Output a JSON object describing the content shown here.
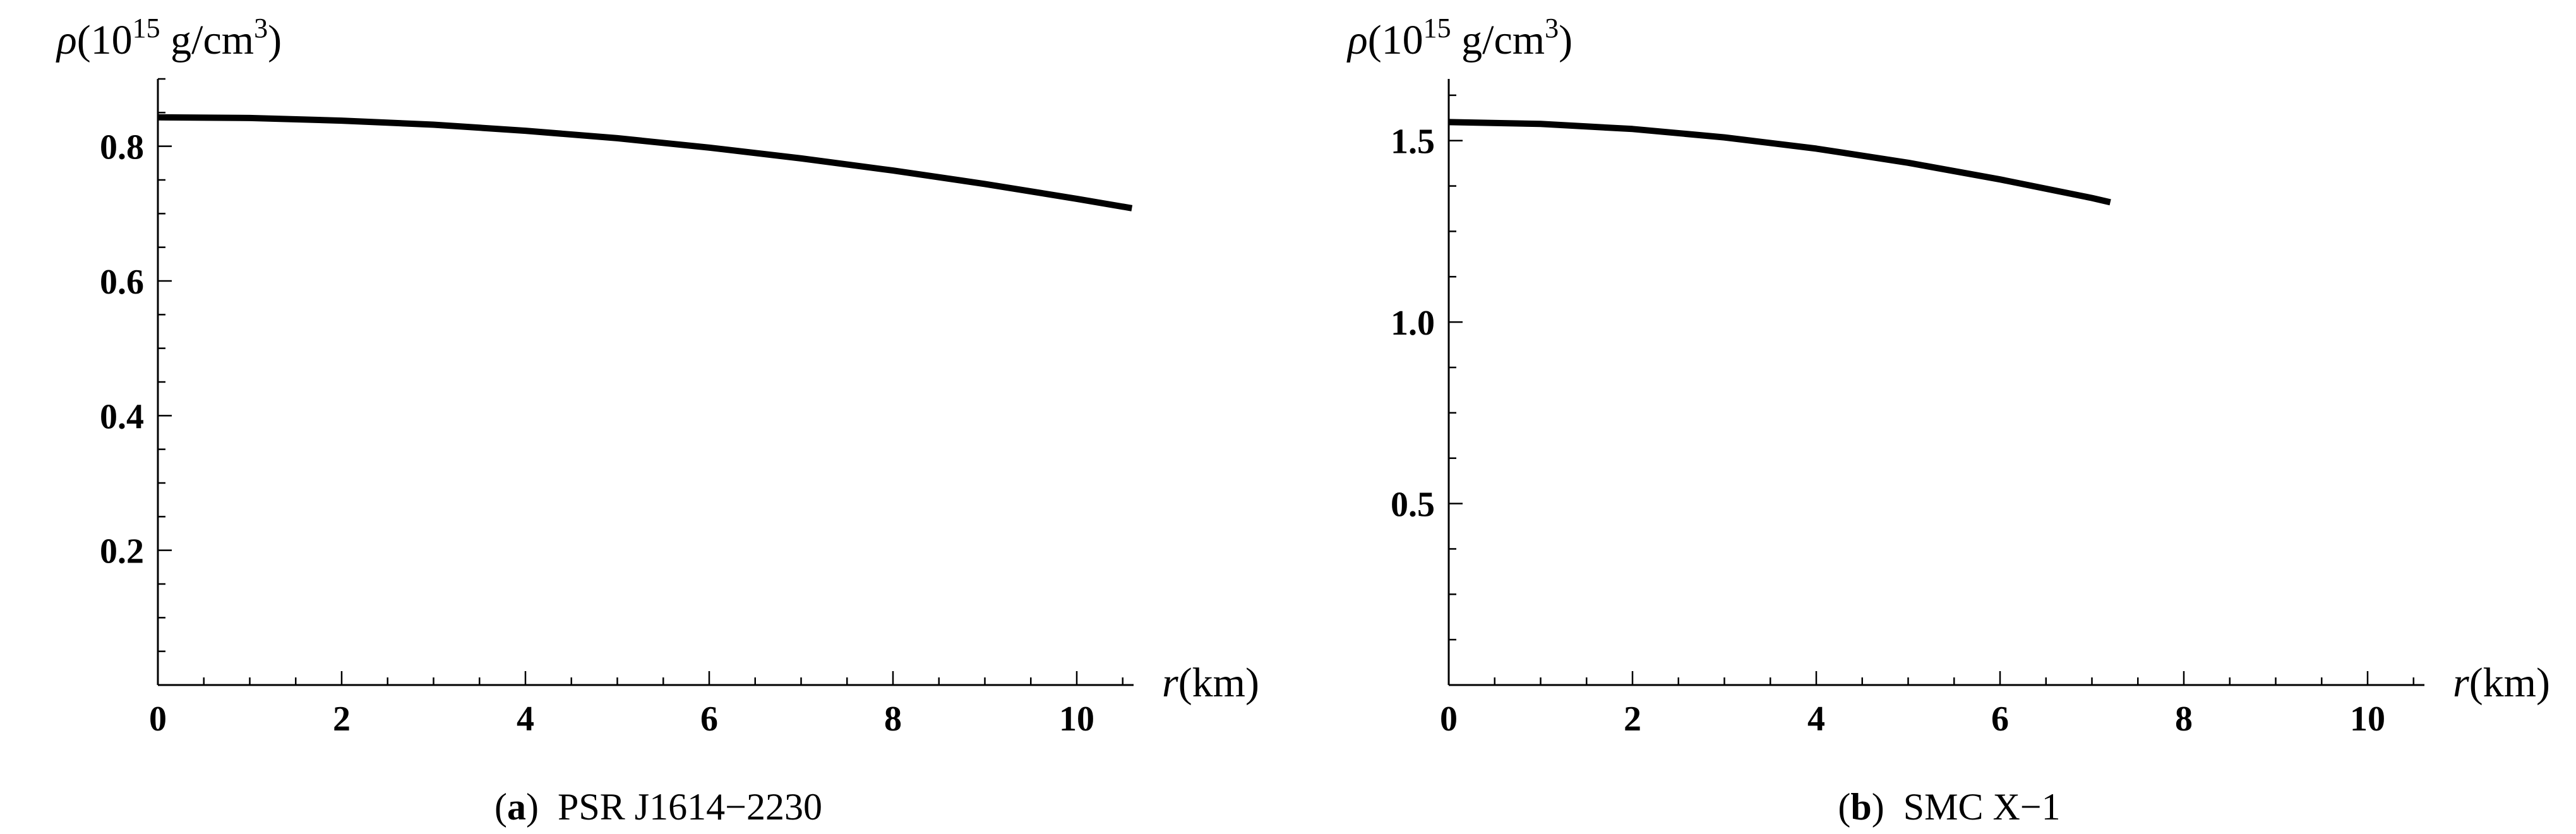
{
  "chart_data": [
    {
      "type": "line",
      "caption_letter": "a",
      "caption_text": "PSR J1614−2230",
      "ylabel": {
        "symbol": "ρ",
        "open": "(10",
        "exponent": "15",
        "unit": " g/cm",
        "unit_exponent": "3",
        "close": ")"
      },
      "xlabel": {
        "symbol": "r",
        "unit": "(km)"
      },
      "xlim": [
        0,
        10.6
      ],
      "ylim": [
        0,
        0.9
      ],
      "x_ticks": [
        0,
        2,
        4,
        6,
        8,
        10
      ],
      "x_tick_labels": [
        "0",
        "2",
        "4",
        "6",
        "8",
        "10"
      ],
      "y_ticks": [
        0.2,
        0.4,
        0.6,
        0.8
      ],
      "y_tick_labels": [
        "0.2",
        "0.4",
        "0.6",
        "0.8"
      ],
      "series": [
        {
          "x": [
            0,
            1,
            2,
            3,
            4,
            5,
            6,
            7,
            8,
            9,
            10,
            10.6
          ],
          "y": [
            0.843,
            0.842,
            0.838,
            0.832,
            0.823,
            0.812,
            0.798,
            0.782,
            0.764,
            0.744,
            0.722,
            0.708
          ]
        }
      ]
    },
    {
      "type": "line",
      "caption_letter": "b",
      "caption_text": "SMC X−1",
      "ylabel": {
        "symbol": "ρ",
        "open": "(10",
        "exponent": "15",
        "unit": " g/cm",
        "unit_exponent": "3",
        "close": ")"
      },
      "xlabel": {
        "symbol": "r",
        "unit": "(km)"
      },
      "xlim": [
        0,
        10.6
      ],
      "ylim": [
        0,
        1.67
      ],
      "x_ticks": [
        0,
        2,
        4,
        6,
        8,
        10
      ],
      "x_tick_labels": [
        "0",
        "2",
        "4",
        "6",
        "8",
        "10"
      ],
      "y_ticks": [
        0.5,
        1.0,
        1.5
      ],
      "y_tick_labels": [
        "0.5",
        "1.0",
        "1.5"
      ],
      "series": [
        {
          "x": [
            0,
            1,
            2,
            3,
            4,
            5,
            6,
            7,
            7.2
          ],
          "y": [
            1.551,
            1.546,
            1.532,
            1.509,
            1.478,
            1.439,
            1.393,
            1.342,
            1.33
          ]
        }
      ]
    }
  ]
}
